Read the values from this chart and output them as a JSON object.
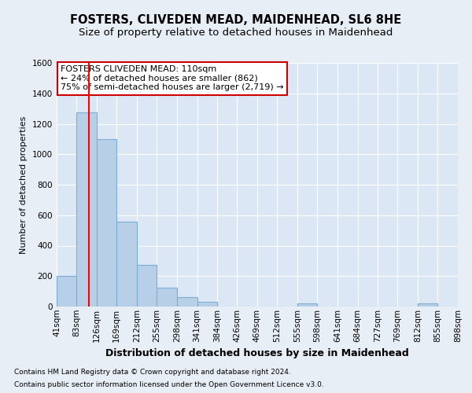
{
  "title": "FOSTERS, CLIVEDEN MEAD, MAIDENHEAD, SL6 8HE",
  "subtitle": "Size of property relative to detached houses in Maidenhead",
  "xlabel": "Distribution of detached houses by size in Maidenhead",
  "ylabel": "Number of detached properties",
  "footnote1": "Contains HM Land Registry data © Crown copyright and database right 2024.",
  "footnote2": "Contains public sector information licensed under the Open Government Licence v3.0.",
  "annotation_line1": "FOSTERS CLIVEDEN MEAD: 110sqm",
  "annotation_line2": "← 24% of detached houses are smaller (862)",
  "annotation_line3": "75% of semi-detached houses are larger (2,719) →",
  "bar_color": "#b8cfe8",
  "bar_edge_color": "#7aaed4",
  "red_line_x": 110,
  "ylim": [
    0,
    1600
  ],
  "yticks": [
    0,
    200,
    400,
    600,
    800,
    1000,
    1200,
    1400,
    1600
  ],
  "bin_edges": [
    41,
    83,
    126,
    169,
    212,
    255,
    298,
    341,
    384,
    426,
    469,
    512,
    555,
    598,
    641,
    684,
    727,
    769,
    812,
    855,
    898
  ],
  "bar_heights": [
    200,
    1275,
    1100,
    555,
    275,
    125,
    60,
    30,
    0,
    0,
    0,
    0,
    20,
    0,
    0,
    0,
    0,
    0,
    20,
    0
  ],
  "bg_color": "#e8eef5",
  "plot_bg_color": "#dce7f5",
  "grid_color": "#ffffff",
  "title_fontsize": 10.5,
  "subtitle_fontsize": 9.5,
  "ylabel_fontsize": 8,
  "xlabel_fontsize": 9,
  "tick_fontsize": 7.5,
  "footnote_fontsize": 6.5,
  "annotation_fontsize": 8,
  "annotation_box_color": "#ffffff",
  "annotation_box_edge": "#cc0000"
}
